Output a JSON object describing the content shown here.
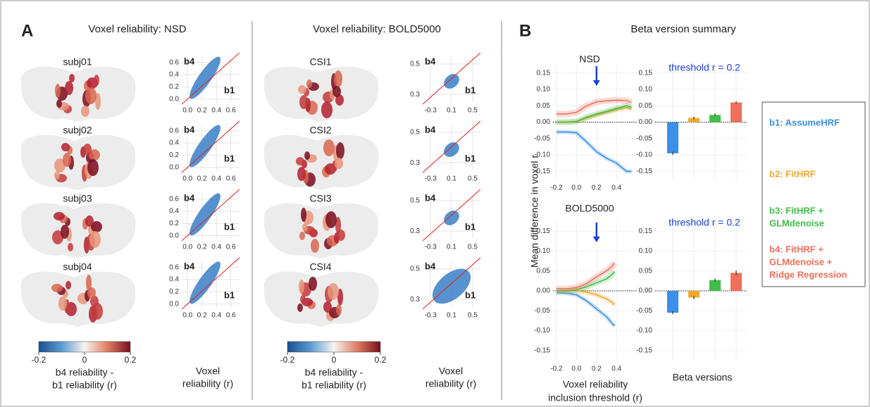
{
  "panel_a": {
    "label": "A",
    "scatter_labels": [
      "b4",
      "b1"
    ],
    "groups": [
      {
        "title": "Voxel reliability: NSD",
        "maps": [
          "subj01",
          "subj02",
          "subj03",
          "subj04"
        ],
        "scatter": {
          "xlim": [
            -0.08,
            0.72
          ],
          "ylim": [
            -0.05,
            0.7
          ],
          "xticks": [
            {
              "value": 0,
              "label": "0.0"
            },
            0.2,
            0.4,
            0.6
          ],
          "yticks": [
            {
              "value": 0,
              "label": "0.0"
            },
            0.2,
            0.4,
            0.6
          ]
        },
        "colorbar": {
          "lim": [
            -0.2,
            0.2
          ],
          "ticks": [
            -0.2,
            0,
            0.2
          ],
          "label": [
            "b4 reliability -",
            "b1 reliability (r)"
          ]
        },
        "xlabel": [
          "Voxel",
          "reliability (r)"
        ]
      },
      {
        "title": "Voxel reliability: BOLD5000",
        "maps": [
          "CSI1",
          "CSI2",
          "CSI3",
          "CSI4"
        ],
        "scatter": {
          "xlim": [
            -0.45,
            0.65
          ],
          "ylim": [
            0.25,
            0.55
          ],
          "xticks": [
            -0.3,
            0.1,
            0.5
          ],
          "yticks": [
            0.3,
            0.5
          ]
        },
        "colorbar": {
          "lim": [
            -0.2,
            0.2
          ],
          "ticks": [
            -0.2,
            0,
            0.2
          ],
          "label": [
            "b4 reliability -",
            "b1 reliability (r)"
          ]
        },
        "xlabel": [
          "Voxel",
          "reliability (r)"
        ]
      }
    ]
  },
  "panel_b": {
    "label": "B",
    "title": "Beta version summary",
    "ylabel": "Mean difference in voxel r",
    "xlabel": [
      "Voxel reliability",
      "inclusion threshold (r)"
    ],
    "bar_xlabel": "Beta versions",
    "legend": [
      {
        "lines": [
          "b1: AssumeHRF"
        ],
        "color": "#3a8fe8"
      },
      {
        "lines": [
          "b2: FitHRF"
        ],
        "color": "#f0a830"
      },
      {
        "lines": [
          "b3: FitHRF +",
          "GLMdenoise"
        ],
        "color": "#3fbf4a"
      },
      {
        "lines": [
          "b4: FitHRF +",
          "GLMdenoise +",
          "Ridge Regression"
        ],
        "color": "#f0705a"
      }
    ],
    "charts": [
      {
        "type": "line",
        "title": "NSD",
        "x": [
          -0.2,
          -0.1,
          0,
          0.1,
          0.2,
          0.3,
          0.4,
          0.5,
          0.55
        ],
        "series": [
          {
            "color": "#3a8fe8",
            "values": [
              -0.03,
              -0.03,
              -0.032,
              -0.06,
              -0.09,
              -0.11,
              -0.125,
              -0.15,
              -0.15
            ]
          },
          {
            "color": "#f0a830",
            "values": [
              0,
              0,
              0.002,
              0.012,
              0.022,
              0.03,
              0.038,
              0.045,
              0.04
            ]
          },
          {
            "color": "#3fbf4a",
            "values": [
              0,
              0,
              0.002,
              0.015,
              0.025,
              0.033,
              0.042,
              0.05,
              0.045
            ]
          },
          {
            "color": "#f0705a",
            "values": [
              0.025,
              0.025,
              0.03,
              0.05,
              0.062,
              0.065,
              0.067,
              0.066,
              0.06
            ]
          }
        ],
        "arrow_x": 0.2,
        "xlim": [
          -0.235,
          0.61
        ],
        "ylim": [
          -0.175,
          0.175
        ],
        "xticks": [
          -0.2,
          {
            "value": 0,
            "label": "0.0"
          },
          0.2,
          0.4
        ],
        "yticks": [
          0.15,
          {
            "value": 0.1,
            "label": "0.10"
          },
          0.05,
          {
            "value": 0,
            "label": "0.00"
          },
          -0.05,
          {
            "value": -0.1,
            "label": "-0.10"
          },
          -0.15
        ]
      },
      {
        "type": "bar",
        "title": "threshold r = 0.2",
        "values": [
          -0.095,
          0.013,
          0.022,
          0.06
        ],
        "errors": [
          0.005,
          0.004,
          0.004,
          0.004
        ],
        "colors": [
          "#3a8fe8",
          "#f0a830",
          "#3fbf4a",
          "#f0705a"
        ],
        "ylim": [
          -0.175,
          0.175
        ],
        "yticks": [
          0.15,
          {
            "value": 0.1,
            "label": "0.10"
          },
          0.05,
          {
            "value": 0,
            "label": "0.00"
          },
          -0.05,
          {
            "value": -0.1,
            "label": "-0.10"
          },
          -0.15
        ]
      },
      {
        "type": "line",
        "title": "BOLD5000",
        "x": [
          -0.2,
          -0.1,
          0,
          0.1,
          0.2,
          0.3,
          0.35,
          0.38
        ],
        "series": [
          {
            "color": "#3a8fe8",
            "values": [
              -0.005,
              -0.006,
              -0.01,
              -0.025,
              -0.045,
              -0.065,
              -0.08,
              -0.088
            ]
          },
          {
            "color": "#f0a830",
            "values": [
              0,
              0,
              0,
              -0.003,
              -0.01,
              -0.02,
              -0.028,
              -0.035
            ]
          },
          {
            "color": "#3fbf4a",
            "values": [
              0,
              0,
              0.003,
              0.01,
              0.02,
              0.03,
              0.04,
              0.048
            ]
          },
          {
            "color": "#f0705a",
            "values": [
              0.005,
              0.005,
              0.008,
              0.018,
              0.035,
              0.05,
              0.06,
              0.07
            ]
          }
        ],
        "arrow_x": 0.2,
        "xlim": [
          -0.235,
          0.61
        ],
        "ylim": [
          -0.175,
          0.175
        ],
        "xticks": [
          -0.2,
          {
            "value": 0,
            "label": "0.0"
          },
          0.2,
          0.4
        ],
        "yticks": [
          0.15,
          {
            "value": 0.1,
            "label": "0.10"
          },
          0.05,
          {
            "value": 0,
            "label": "0.00"
          },
          -0.05,
          {
            "value": -0.1,
            "label": "-0.10"
          },
          -0.15
        ]
      },
      {
        "type": "bar",
        "title": "threshold r = 0.2",
        "values": [
          -0.055,
          -0.017,
          0.027,
          0.045
        ],
        "errors": [
          0.004,
          0.004,
          0.004,
          0.006
        ],
        "colors": [
          "#3a8fe8",
          "#f0a830",
          "#3fbf4a",
          "#f0705a"
        ],
        "ylim": [
          -0.175,
          0.175
        ],
        "yticks": [
          0.15,
          {
            "value": 0.1,
            "label": "0.10"
          },
          0.05,
          {
            "value": 0,
            "label": "0.00"
          },
          -0.05,
          {
            "value": -0.1,
            "label": "-0.10"
          },
          -0.15
        ]
      }
    ]
  }
}
